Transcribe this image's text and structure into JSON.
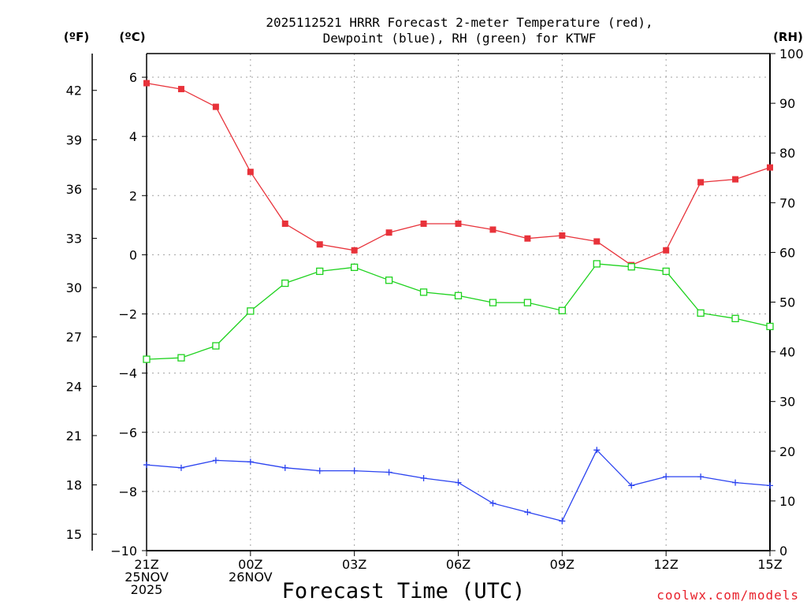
{
  "title": {
    "line1": "2025112521 HRRR Forecast 2-meter Temperature (red),",
    "line2": "Dewpoint (blue), RH (green) for KTWF"
  },
  "units": {
    "fahrenheit": "(ºF)",
    "celsius": "(ºC)",
    "rh": "(RH)"
  },
  "credit": "coolwx.com/models",
  "colors": {
    "temperature": "#e8323a",
    "dewpoint": "#2b43f0",
    "rh": "#1ed21e"
  },
  "chart_data": {
    "type": "line",
    "title": "2025112521 HRRR Forecast 2-meter Temperature (red), Dewpoint (blue), RH (green) for KTWF",
    "xlabel": "Forecast Time (UTC)",
    "ylabel_left": "(ºC)",
    "ylabel_far_left": "(ºF)",
    "ylabel_right": "(RH)",
    "x": [
      0,
      1,
      2,
      3,
      4,
      5,
      6,
      7,
      8,
      9,
      10,
      11,
      12,
      13,
      14,
      15,
      16,
      17,
      18
    ],
    "x_ticks": [
      {
        "x": 0,
        "lines": [
          "21Z",
          "25NOV",
          "2025"
        ]
      },
      {
        "x": 3,
        "lines": [
          "00Z",
          "26NOV"
        ]
      },
      {
        "x": 6,
        "lines": [
          "03Z"
        ]
      },
      {
        "x": 9,
        "lines": [
          "06Z"
        ]
      },
      {
        "x": 12,
        "lines": [
          "09Z"
        ]
      },
      {
        "x": 15,
        "lines": [
          "12Z"
        ]
      },
      {
        "x": 18,
        "lines": [
          "15Z"
        ]
      }
    ],
    "xlim": [
      0,
      18
    ],
    "ylim_celsius": [
      -10,
      6.8
    ],
    "ylim_rh": [
      0,
      100
    ],
    "yticks_celsius": [
      -10,
      -8,
      -6,
      -4,
      -2,
      0,
      2,
      4,
      6
    ],
    "yticks_fahrenheit": [
      15,
      18,
      21,
      24,
      27,
      30,
      33,
      36,
      39,
      42
    ],
    "yticks_rh": [
      0,
      10,
      20,
      30,
      40,
      50,
      60,
      70,
      80,
      90,
      100
    ],
    "grid": true,
    "series": [
      {
        "name": "Temperature",
        "axis": "celsius",
        "marker": "filled-square",
        "values": [
          5.8,
          5.6,
          5.0,
          2.8,
          1.05,
          0.35,
          0.15,
          0.75,
          1.05,
          1.05,
          0.85,
          0.55,
          0.65,
          0.45,
          -0.35,
          0.15,
          2.45,
          2.55,
          2.95
        ]
      },
      {
        "name": "Dewpoint",
        "axis": "celsius",
        "marker": "plus",
        "values": [
          -7.1,
          -7.2,
          -6.95,
          -7.0,
          -7.2,
          -7.3,
          -7.3,
          -7.35,
          -7.55,
          -7.7,
          -8.4,
          -8.7,
          -9.0,
          -6.6,
          -7.8,
          -7.5,
          -7.5,
          -7.7,
          -7.8
        ]
      },
      {
        "name": "RH",
        "axis": "rh",
        "marker": "open-square",
        "values": [
          38.5,
          38.8,
          41.2,
          48.2,
          53.8,
          56.2,
          57.0,
          54.4,
          52.0,
          51.3,
          49.9,
          49.9,
          48.3,
          57.7,
          57.1,
          56.2,
          47.8,
          46.7,
          45.1
        ]
      }
    ]
  }
}
